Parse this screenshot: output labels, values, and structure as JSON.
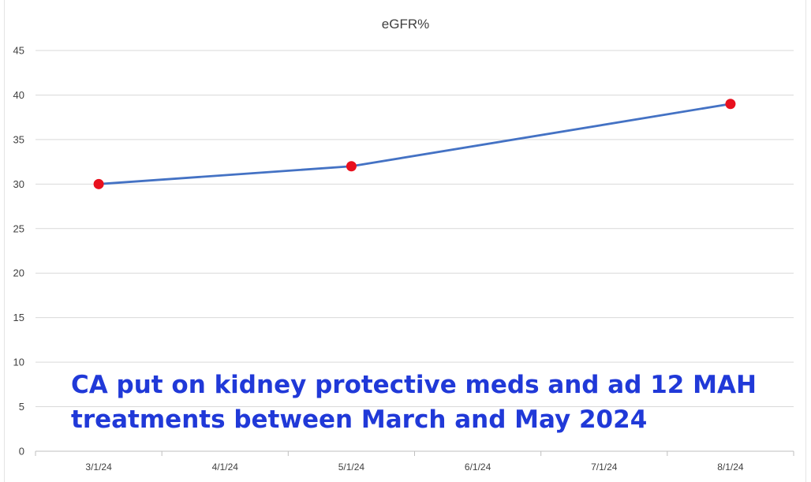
{
  "chart_data": {
    "type": "line",
    "title": "eGFR%",
    "xlabel": "",
    "ylabel": "",
    "ylim": [
      0,
      45
    ],
    "yticks": [
      0,
      5,
      10,
      15,
      20,
      25,
      30,
      35,
      40,
      45
    ],
    "categories": [
      "3/1/24",
      "4/1/24",
      "5/1/24",
      "6/1/24",
      "7/1/24",
      "8/1/24"
    ],
    "series": [
      {
        "x": [
          "3/1/24",
          "5/1/24",
          "8/1/24"
        ],
        "values": [
          30,
          32,
          39
        ]
      }
    ],
    "grid": true,
    "legend": "none",
    "colors": {
      "line": "#4472c4",
      "marker": "#e8101e",
      "grid": "#d9d9d9",
      "axis": "#bfbfbf",
      "annotation": "#2039d8"
    },
    "annotation_lines": [
      "CA put on kidney protective meds and ad 12 MAH",
      "treatments between March and May 2024"
    ]
  }
}
